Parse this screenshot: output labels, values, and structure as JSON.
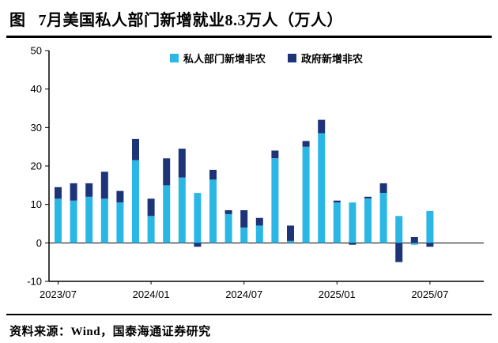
{
  "header": {
    "tag": "图",
    "title": "7月美国私人部门新增就业8.3万人（万人）"
  },
  "footer": {
    "source": "资料来源：Wind，国泰海通证券研究"
  },
  "chart_data": {
    "type": "bar",
    "stacked": true,
    "title": "7月美国私人部门新增就业8.3万人（万人）",
    "categories": [
      "2023/07",
      "2023/08",
      "2023/09",
      "2023/10",
      "2023/11",
      "2023/12",
      "2024/01",
      "2024/02",
      "2024/03",
      "2024/04",
      "2024/05",
      "2024/06",
      "2024/07",
      "2024/08",
      "2024/09",
      "2024/10",
      "2024/11",
      "2024/12",
      "2025/01",
      "2025/02",
      "2025/03",
      "2025/04",
      "2025/05",
      "2025/06",
      "2025/07"
    ],
    "series": [
      {
        "name": "私人部门新增非农",
        "color": "#2BB7E5",
        "values": [
          11.5,
          11,
          12,
          11.5,
          10.5,
          21.5,
          7,
          15,
          17,
          13,
          16.5,
          7.5,
          4,
          4.5,
          22,
          0.5,
          25,
          28.5,
          10.5,
          10.5,
          11.5,
          13,
          7,
          -0.5,
          8.3
        ]
      },
      {
        "name": "政府新增非农",
        "color": "#1E3478",
        "values": [
          3,
          4.5,
          3.5,
          7,
          3,
          5.5,
          4.5,
          7,
          7.5,
          -1,
          2.5,
          1,
          4.5,
          2,
          2,
          4,
          1.5,
          3.5,
          0.5,
          -0.5,
          0.5,
          2.5,
          -5,
          1.5,
          -1
        ]
      }
    ],
    "ylim": [
      -10,
      50
    ],
    "yticks": [
      50,
      40,
      30,
      20,
      10,
      0,
      -10
    ],
    "xtick_indices": [
      0,
      6,
      12,
      18,
      24
    ],
    "legend_position": "top-center",
    "grid": false,
    "axis_color": "#000000"
  }
}
